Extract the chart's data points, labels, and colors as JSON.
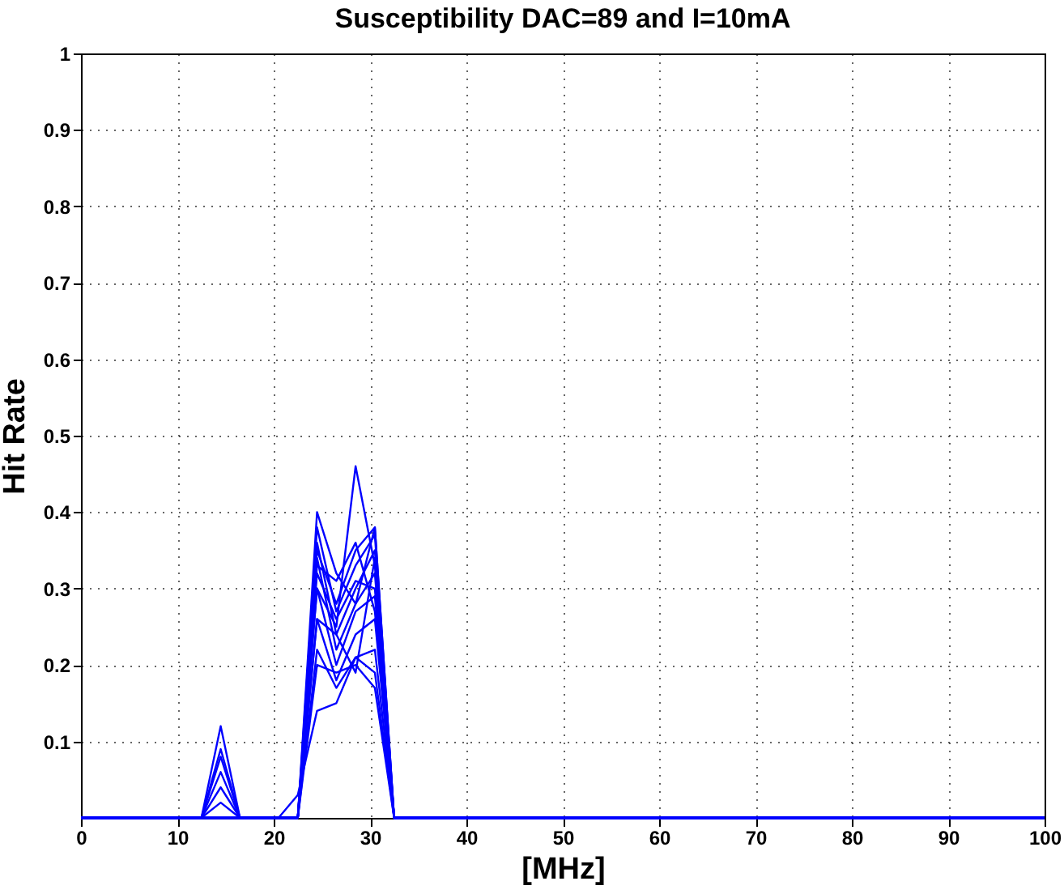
{
  "chart_data": {
    "type": "line",
    "title": "Susceptibility DAC=89 and I=10mA",
    "xlabel": "[MHz]",
    "ylabel": "Hit Rate",
    "x": [
      0,
      12.5,
      14.5,
      16.5,
      20.5,
      22.5,
      24.5,
      26.5,
      28.5,
      30.5,
      32.5,
      100
    ],
    "series": [
      {
        "color": "#0000ff",
        "values": [
          0,
          0,
          0.12,
          0,
          0,
          0,
          0.4,
          0.32,
          0.28,
          0.38,
          0,
          0
        ]
      },
      {
        "color": "#0000ff",
        "values": [
          0,
          0,
          0.09,
          0,
          0,
          0,
          0.3,
          0.25,
          0.46,
          0.33,
          0,
          0
        ]
      },
      {
        "color": "#0000ff",
        "values": [
          0,
          0,
          0.08,
          0,
          0,
          0,
          0.38,
          0.27,
          0.33,
          0.37,
          0,
          0
        ]
      },
      {
        "color": "#0000ff",
        "values": [
          0,
          0,
          0.06,
          0,
          0,
          0,
          0.36,
          0.24,
          0.3,
          0.35,
          0,
          0
        ]
      },
      {
        "color": "#0000ff",
        "values": [
          0,
          0,
          0.04,
          0,
          0,
          0,
          0.34,
          0.22,
          0.28,
          0.32,
          0,
          0
        ]
      },
      {
        "color": "#0000ff",
        "values": [
          0,
          0,
          0.02,
          0,
          0,
          0,
          0.32,
          0.26,
          0.31,
          0.3,
          0,
          0
        ]
      },
      {
        "color": "#0000ff",
        "values": [
          0,
          0,
          0,
          0,
          0,
          0,
          0.3,
          0.2,
          0.27,
          0.29,
          0,
          0
        ]
      },
      {
        "color": "#0000ff",
        "values": [
          0,
          0,
          0,
          0,
          0,
          0,
          0.33,
          0.31,
          0.36,
          0.27,
          0,
          0
        ]
      },
      {
        "color": "#0000ff",
        "values": [
          0,
          0,
          0,
          0,
          0,
          0,
          0.26,
          0.18,
          0.24,
          0.26,
          0,
          0
        ]
      },
      {
        "color": "#0000ff",
        "values": [
          0,
          0,
          0,
          0,
          0,
          0,
          0.26,
          0.24,
          0.19,
          0.34,
          0,
          0
        ]
      },
      {
        "color": "#0000ff",
        "values": [
          0,
          0,
          0,
          0,
          0,
          0,
          0.22,
          0.17,
          0.21,
          0.22,
          0,
          0
        ]
      },
      {
        "color": "#0000ff",
        "values": [
          0,
          0,
          0,
          0,
          0,
          0,
          0.2,
          0.19,
          0.2,
          0.17,
          0,
          0
        ]
      },
      {
        "color": "#0000ff",
        "values": [
          0,
          0,
          0,
          0,
          0,
          0.03,
          0.14,
          0.15,
          0.21,
          0.19,
          0,
          0
        ]
      },
      {
        "color": "#0000ff",
        "values": [
          0,
          0,
          0,
          0,
          0,
          0,
          0.35,
          0.28,
          0.35,
          0.38,
          0,
          0
        ]
      }
    ],
    "xlim": [
      0,
      100
    ],
    "xticks": [
      0,
      10,
      20,
      30,
      40,
      50,
      60,
      70,
      80,
      90,
      100
    ],
    "ylim": [
      0,
      1
    ],
    "yticks": [
      0.1,
      0.2,
      0.3,
      0.4,
      0.5,
      0.6,
      0.7,
      0.8,
      0.9,
      1
    ],
    "grid": true
  }
}
